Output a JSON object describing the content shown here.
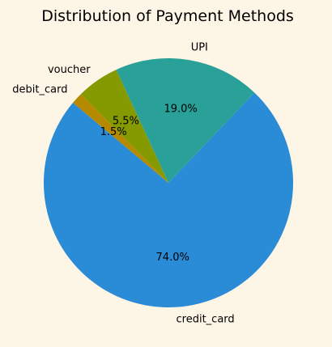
{
  "chart_data": {
    "type": "pie",
    "title": "Distribution of Payment Methods",
    "categories": [
      "credit_card",
      "UPI",
      "voucher",
      "debit_card"
    ],
    "values": [
      74.0,
      19.0,
      5.5,
      1.5
    ],
    "value_labels": [
      "74.0%",
      "19.0%",
      "5.5%",
      "1.5%"
    ],
    "colors": [
      "#2a8bd6",
      "#2aa198",
      "#859900",
      "#b58900"
    ],
    "start_angle_deg": 140,
    "direction": "counterclockwise",
    "legend": "none"
  }
}
